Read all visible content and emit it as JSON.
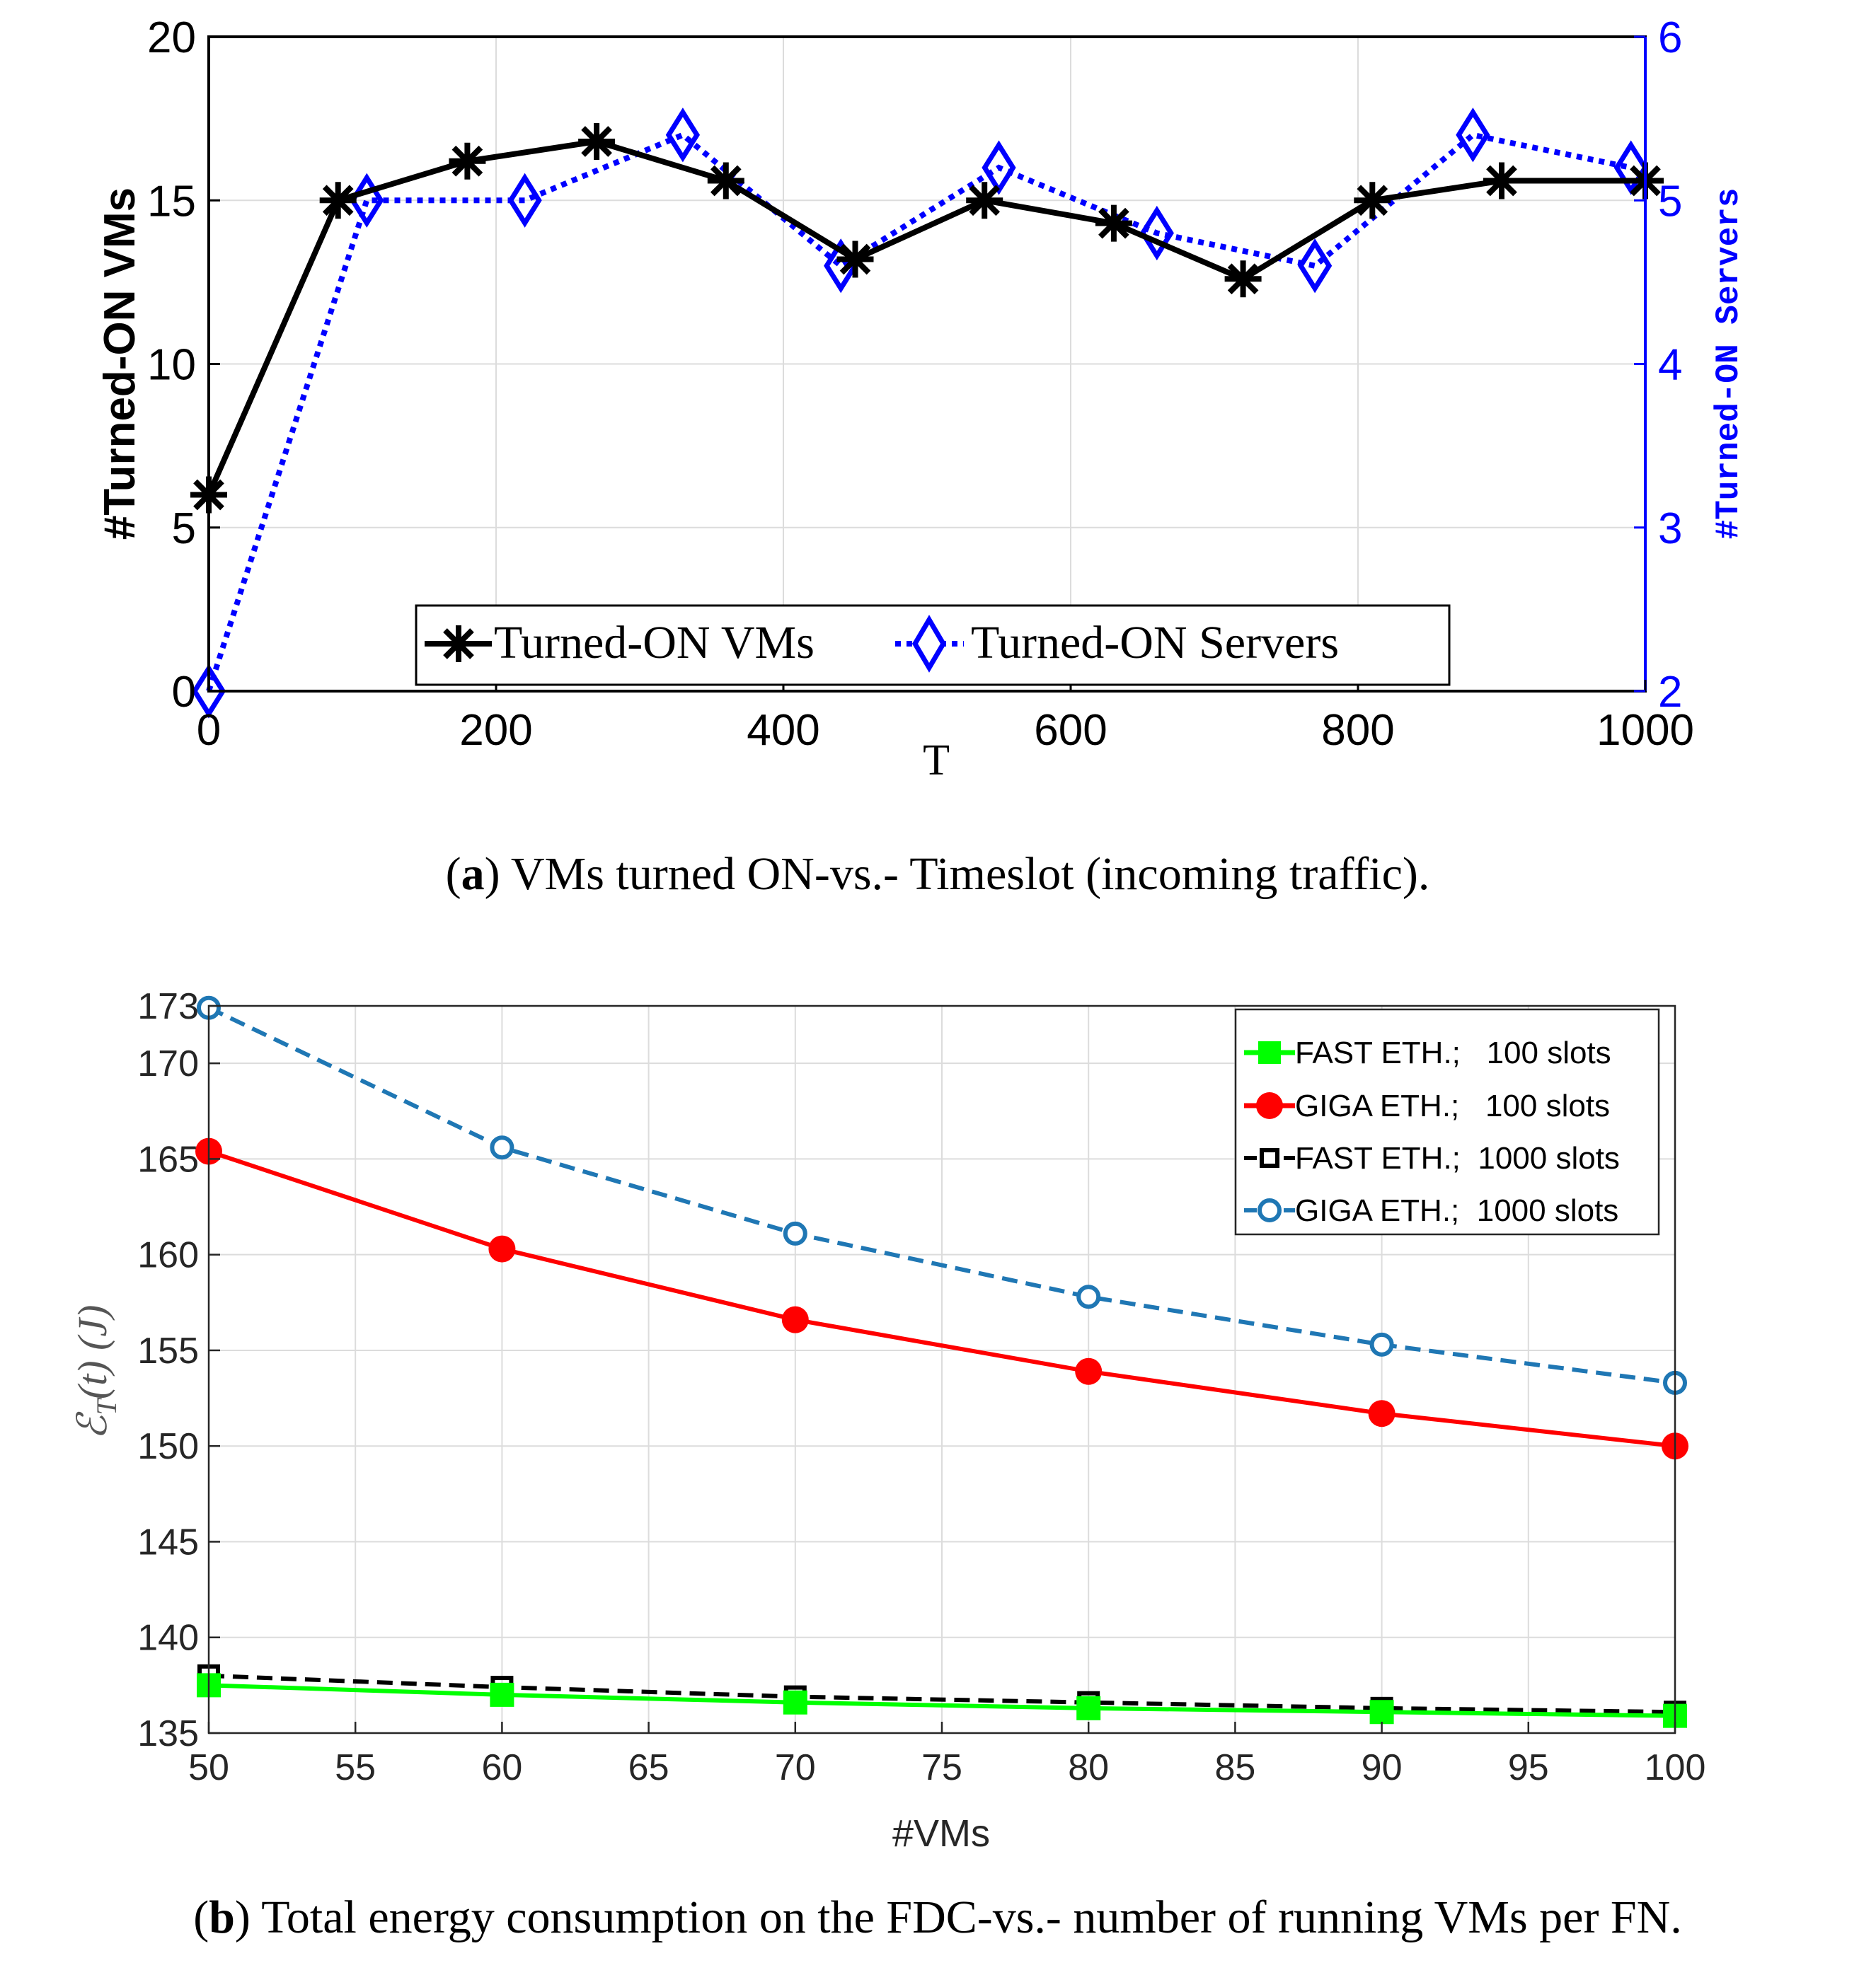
{
  "chart_data": [
    {
      "type": "line",
      "panel": "a",
      "title": "",
      "xlabel": "T",
      "ylabel": "#Turned-ON VMs",
      "ylabel_right": "#Turned-ON Servers",
      "xlim": [
        0,
        1000
      ],
      "ylim": [
        0,
        20
      ],
      "ylim_right": [
        2,
        6
      ],
      "x_ticks": [
        "0",
        "200",
        "400",
        "600",
        "800",
        "1000"
      ],
      "y_ticks": [
        "0",
        "5",
        "10",
        "15",
        "20"
      ],
      "y_ticks_right": [
        "2",
        "3",
        "4",
        "5",
        "6"
      ],
      "grid": true,
      "legend_position": "bottom-center",
      "series": [
        {
          "name": "Turned-ON VMs",
          "axis": "left",
          "color": "#000000",
          "marker": "asterisk",
          "linestyle": "solid",
          "x": [
            0,
            90,
            180,
            270,
            360,
            450,
            540,
            630,
            720,
            810,
            900,
            1000
          ],
          "y": [
            6,
            15,
            16.2,
            16.8,
            15.6,
            13.2,
            15,
            14.3,
            12.6,
            15,
            15.6,
            15.6
          ]
        },
        {
          "name": "Turned-ON Servers",
          "axis": "right",
          "color": "#0000ff",
          "marker": "diamond",
          "linestyle": "dotted",
          "x": [
            0,
            110,
            220,
            330,
            440,
            550,
            660,
            770,
            880,
            990
          ],
          "y": [
            2,
            5,
            5,
            5.4,
            4.6,
            5.2,
            4.8,
            4.6,
            5.4,
            5.2
          ]
        }
      ],
      "caption_label": "a",
      "caption_text": "VMs turned ON-vs.- Timeslot (incoming traffic)."
    },
    {
      "type": "line",
      "panel": "b",
      "title": "",
      "xlabel": "#VMs",
      "ylabel": "ℰ",
      "ylabel_sub": "T",
      "ylabel_rest": "(t) (J)",
      "xlim": [
        50,
        100
      ],
      "ylim": [
        135,
        173
      ],
      "x_ticks": [
        "50",
        "55",
        "60",
        "65",
        "70",
        "75",
        "80",
        "85",
        "90",
        "95",
        "100"
      ],
      "y_ticks": [
        "135",
        "140",
        "145",
        "150",
        "155",
        "160",
        "165",
        "170",
        "173"
      ],
      "grid": true,
      "legend_position": "top-right",
      "categories": [
        50,
        60,
        70,
        80,
        90,
        100
      ],
      "series": [
        {
          "name": "FAST ETH.;   100 slots",
          "color": "#00ff00",
          "marker": "square",
          "linestyle": "solid",
          "values": [
            137.5,
            137.0,
            136.6,
            136.3,
            136.1,
            135.9
          ]
        },
        {
          "name": "GIGA ETH.;   100 slots",
          "color": "#ff0000",
          "marker": "circle-filled",
          "linestyle": "solid",
          "values": [
            165.4,
            160.3,
            156.6,
            153.9,
            151.7,
            150.0
          ]
        },
        {
          "name": "FAST ETH.;  1000 slots",
          "color": "#000000",
          "marker": "square-open",
          "linestyle": "dashed",
          "values": [
            138.0,
            137.4,
            136.9,
            136.6,
            136.3,
            136.1
          ]
        },
        {
          "name": "GIGA ETH.;  1000 slots",
          "color": "#1f77b4",
          "marker": "circle-open",
          "linestyle": "dashed",
          "values": [
            172.9,
            165.6,
            161.1,
            157.8,
            155.3,
            153.3
          ]
        }
      ],
      "caption_label": "b",
      "caption_text": "Total energy consumption on the FDC-vs.- number of running VMs per FN."
    }
  ]
}
